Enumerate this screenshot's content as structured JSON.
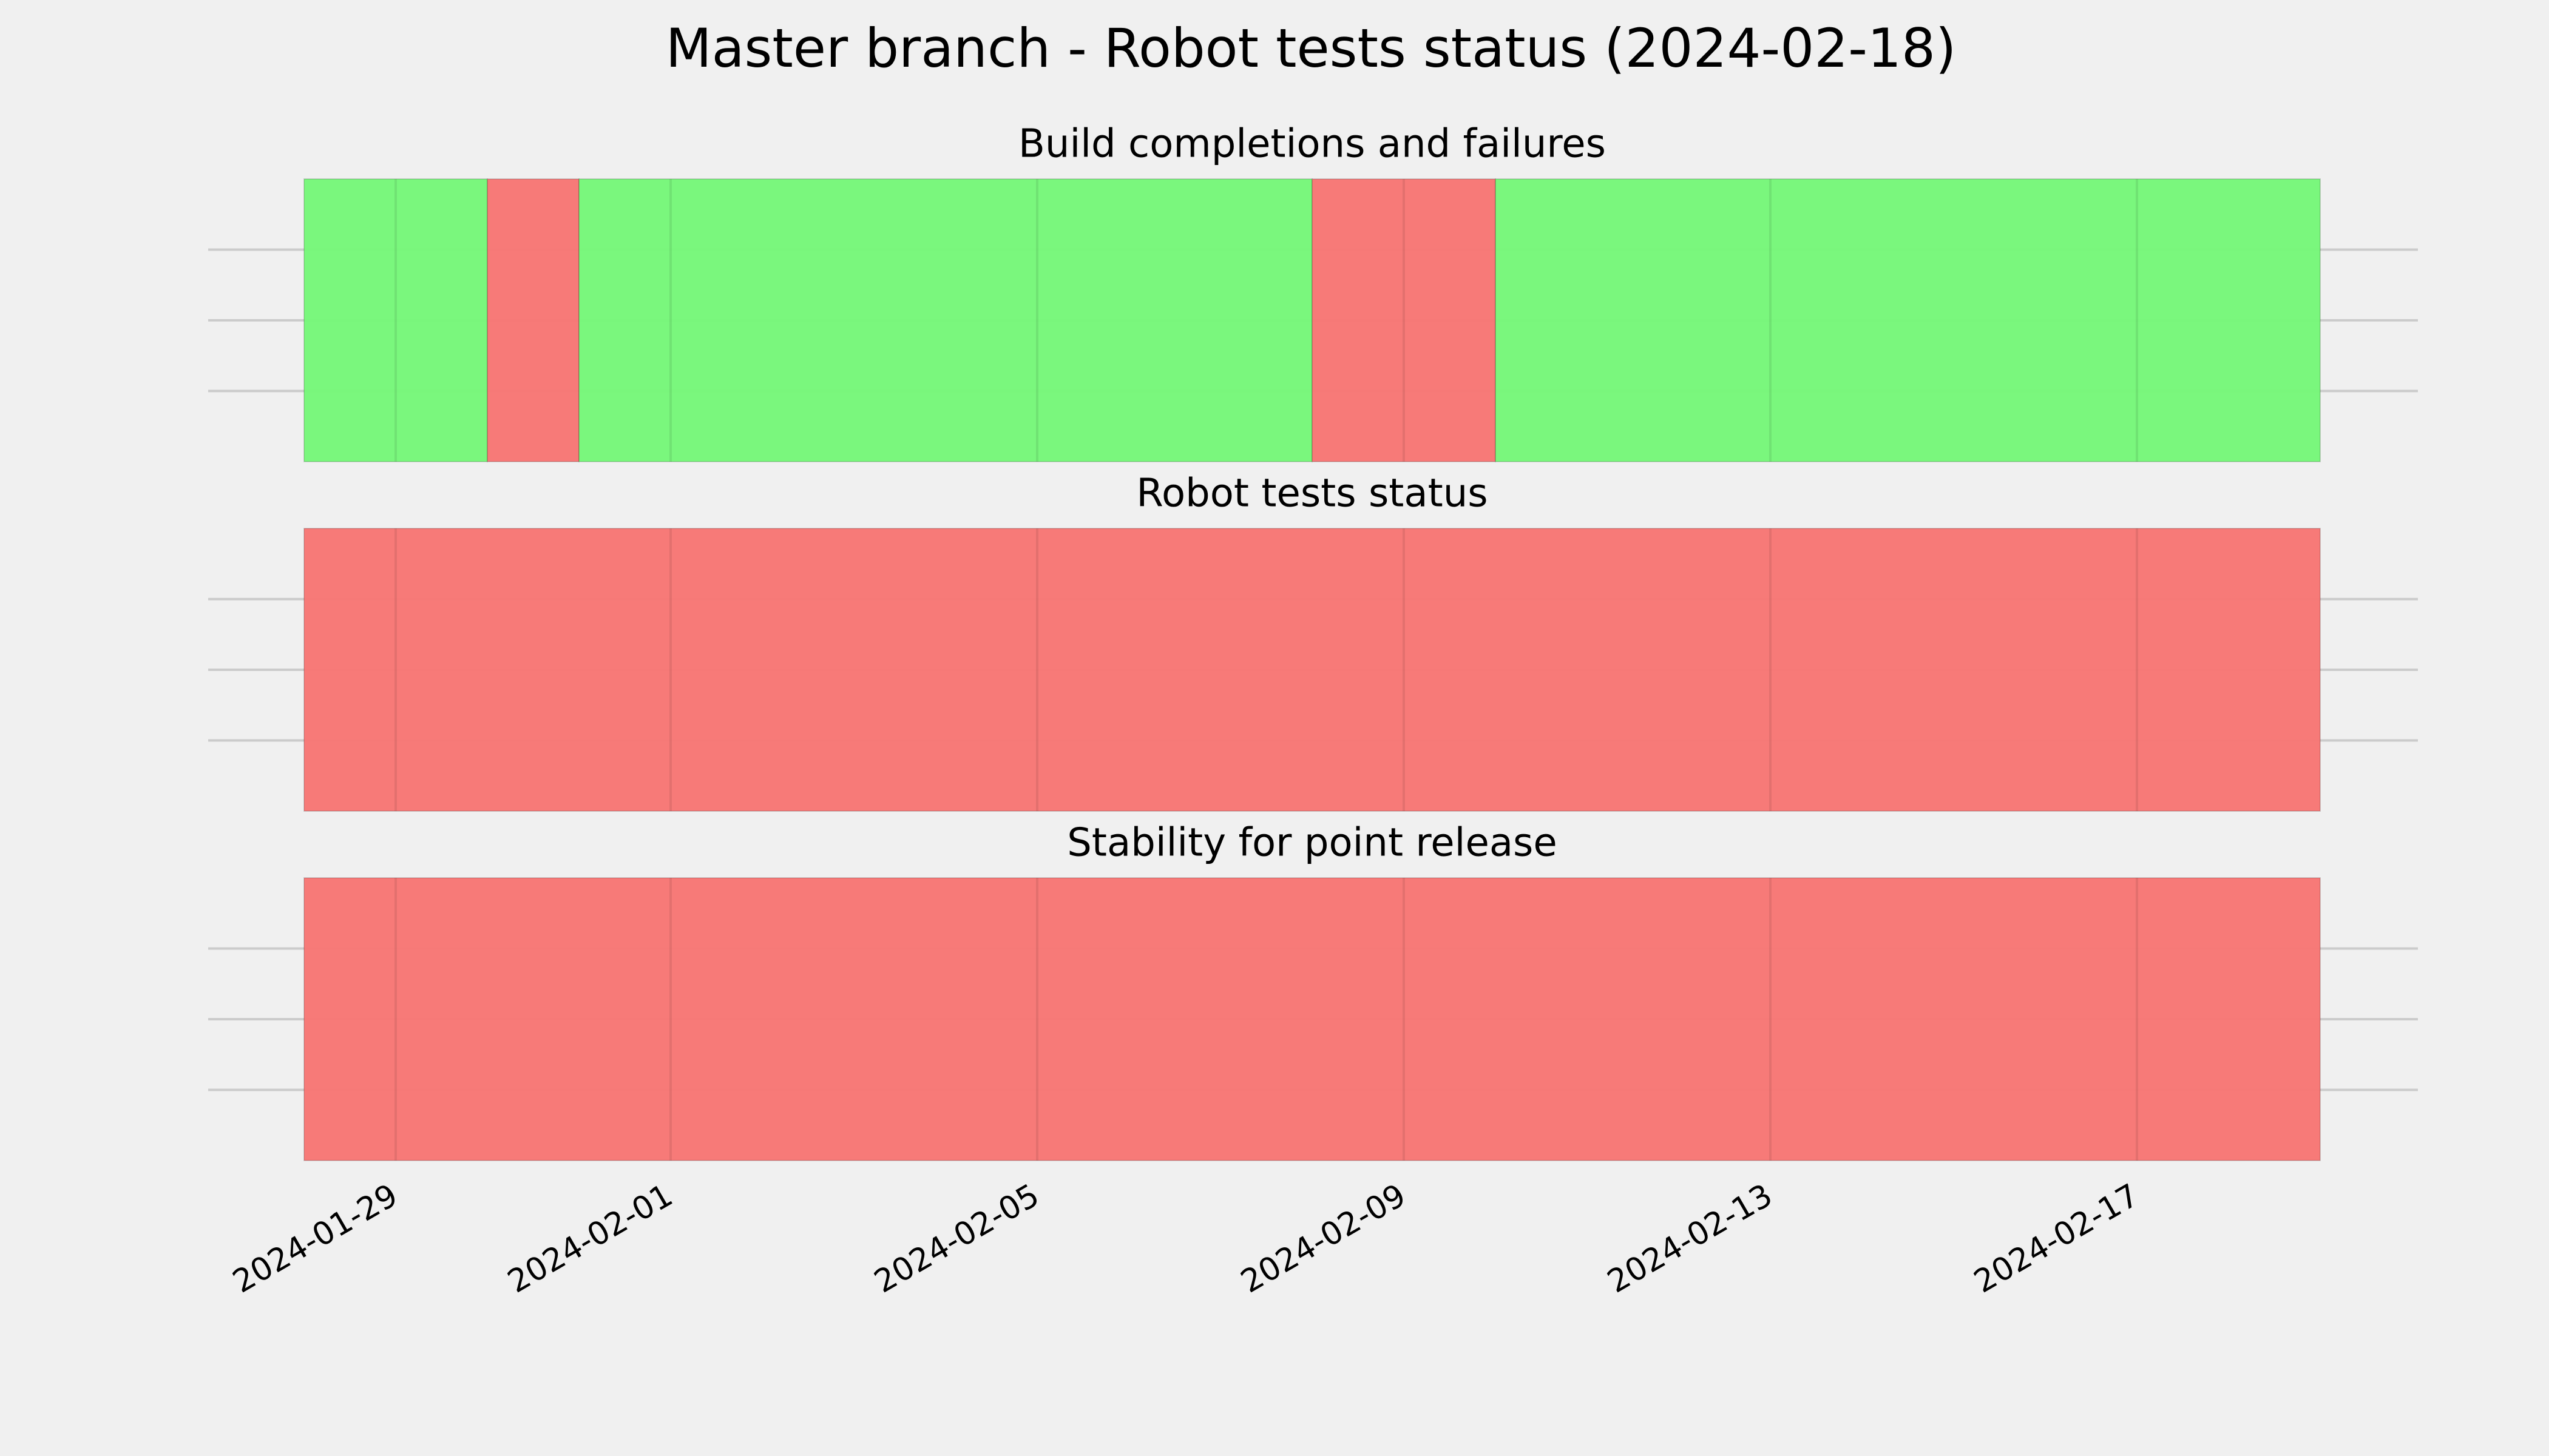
{
  "title": "Master branch - Robot tests status (2024-02-18)",
  "chart_data": [
    {
      "type": "timeline",
      "title": "Build completions and failures",
      "xlim": [
        "2024-01-28",
        "2024-02-19"
      ],
      "xticks": [
        "2024-01-29",
        "2024-02-01",
        "2024-02-05",
        "2024-02-09",
        "2024-02-13",
        "2024-02-17"
      ],
      "ylim": [
        0,
        1
      ],
      "yticks": [
        0.25,
        0.5,
        0.75
      ],
      "grid": true,
      "segments": [
        {
          "start": "2024-01-28",
          "end": "2024-01-30",
          "color": "#77f77a"
        },
        {
          "start": "2024-01-30",
          "end": "2024-01-31",
          "color": "#f77775"
        },
        {
          "start": "2024-01-31",
          "end": "2024-02-08",
          "color": "#77f77a"
        },
        {
          "start": "2024-02-08",
          "end": "2024-02-10",
          "color": "#f77775"
        },
        {
          "start": "2024-02-10",
          "end": "2024-02-19",
          "color": "#77f77a"
        }
      ]
    },
    {
      "type": "timeline",
      "title": "Robot tests status",
      "xlim": [
        "2024-01-28",
        "2024-02-19"
      ],
      "xticks": [
        "2024-01-29",
        "2024-02-01",
        "2024-02-05",
        "2024-02-09",
        "2024-02-13",
        "2024-02-17"
      ],
      "ylim": [
        0,
        1
      ],
      "yticks": [
        0.25,
        0.5,
        0.75
      ],
      "grid": true,
      "segments": [
        {
          "start": "2024-01-28",
          "end": "2024-02-19",
          "color": "#f77775"
        }
      ]
    },
    {
      "type": "timeline",
      "title": "Stability for point release",
      "xlim": [
        "2024-01-28",
        "2024-02-19"
      ],
      "xticks": [
        "2024-01-29",
        "2024-02-01",
        "2024-02-05",
        "2024-02-09",
        "2024-02-13",
        "2024-02-17"
      ],
      "ylim": [
        0,
        1
      ],
      "yticks": [
        0.25,
        0.5,
        0.75
      ],
      "grid": true,
      "show_xtick_labels": true,
      "segments": [
        {
          "start": "2024-01-28",
          "end": "2024-02-19",
          "color": "#f77775"
        }
      ]
    }
  ]
}
